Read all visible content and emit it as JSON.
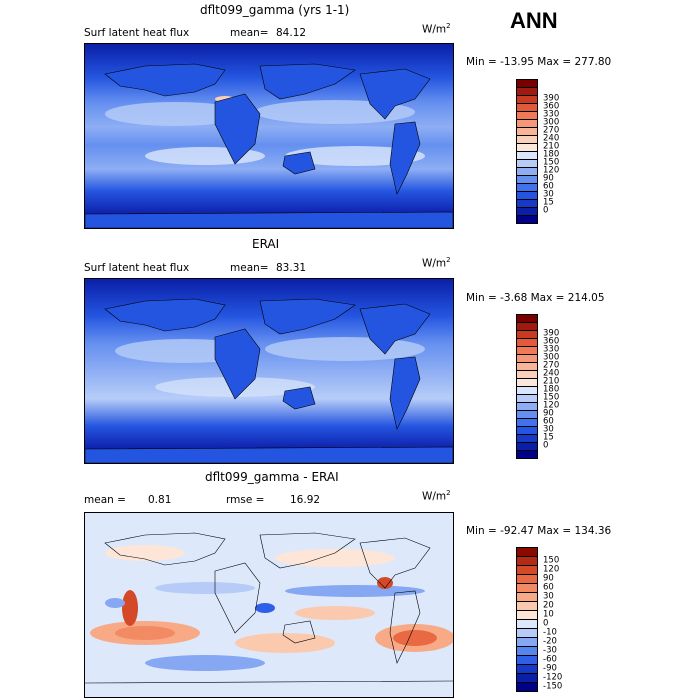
{
  "season": "ANN",
  "panels": [
    {
      "title": "dflt099_gamma (yrs 1-1)",
      "left_label": "Surf latent heat flux",
      "stat1_label": "mean=",
      "stat1_value": "84.12",
      "stat2_label": "",
      "stat2_value": "",
      "units": "W/m",
      "units_exp": "2",
      "minmax": "Min = -13.95 Max = 277.80",
      "colorbar": {
        "colors": [
          "#00008b",
          "#0a1fa8",
          "#1739c8",
          "#2455e0",
          "#3f72ec",
          "#6590f0",
          "#8eaef4",
          "#b7cdf8",
          "#d9e6fb",
          "#fbe8dc",
          "#fbd0b8",
          "#f9b597",
          "#f69877",
          "#f07a58",
          "#e35a3b",
          "#c93a23",
          "#a11a10",
          "#7a0000"
        ],
        "ticks": [
          "390",
          "360",
          "330",
          "300",
          "270",
          "240",
          "210",
          "180",
          "150",
          "120",
          "90",
          "60",
          "30",
          "15",
          "0"
        ]
      }
    },
    {
      "title": "ERAI",
      "left_label": "Surf latent heat flux",
      "stat1_label": "mean=",
      "stat1_value": "83.31",
      "stat2_label": "",
      "stat2_value": "",
      "units": "W/m",
      "units_exp": "2",
      "minmax": "Min = -3.68 Max = 214.05",
      "colorbar": {
        "colors": [
          "#00008b",
          "#0a1fa8",
          "#1739c8",
          "#2455e0",
          "#3f72ec",
          "#6590f0",
          "#8eaef4",
          "#b7cdf8",
          "#d9e6fb",
          "#fbe8dc",
          "#fbd0b8",
          "#f9b597",
          "#f69877",
          "#f07a58",
          "#e35a3b",
          "#c93a23",
          "#a11a10",
          "#7a0000"
        ],
        "ticks": [
          "390",
          "360",
          "330",
          "300",
          "270",
          "240",
          "210",
          "180",
          "150",
          "120",
          "90",
          "60",
          "30",
          "15",
          "0"
        ]
      }
    },
    {
      "title": "dflt099_gamma - ERAI",
      "left_label": "",
      "stat1_label": "mean =",
      "stat1_value": "0.81",
      "stat2_label": "rmse =",
      "stat2_value": "16.92",
      "units": "W/m",
      "units_exp": "2",
      "minmax": "Min = -92.47 Max = 134.36",
      "colorbar": {
        "colors": [
          "#00008b",
          "#0a1fa8",
          "#1739c8",
          "#2f5fe6",
          "#5585ee",
          "#86a8f3",
          "#b6cbf8",
          "#dde8fb",
          "#fde6d8",
          "#fbc9ad",
          "#f8aa86",
          "#f28a63",
          "#e96a42",
          "#d44a28",
          "#b52a14",
          "#8a0a00"
        ],
        "ticks": [
          "150",
          "120",
          "90",
          "60",
          "30",
          "20",
          "10",
          "0",
          "-10",
          "-20",
          "-30",
          "-60",
          "-90",
          "-120",
          "-150"
        ]
      }
    }
  ]
}
